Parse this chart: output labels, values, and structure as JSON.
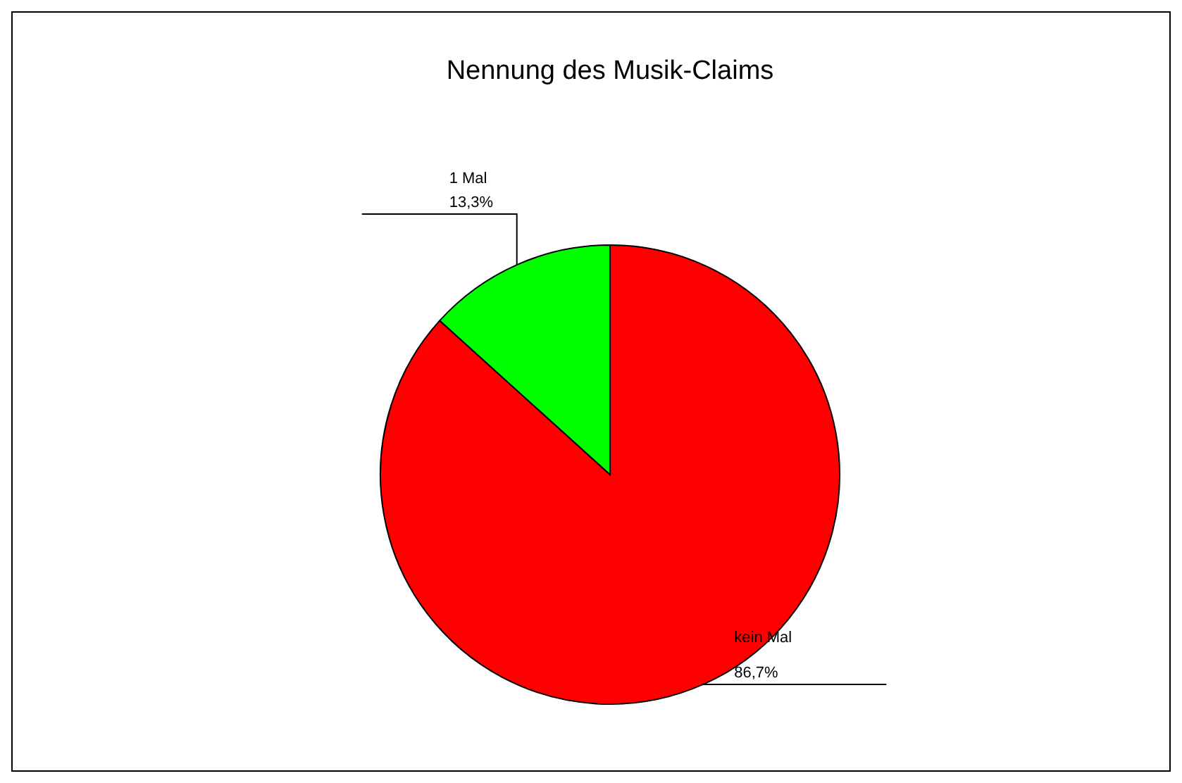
{
  "chart_data": {
    "type": "pie",
    "title": "Nennung des Musik-Claims",
    "categories": [
      "kein Mal",
      "1 Mal"
    ],
    "values": [
      86.7,
      13.3
    ],
    "colors": [
      "#ff0000",
      "#00ff00"
    ],
    "value_labels": [
      "86,7%",
      "13,3%"
    ]
  }
}
